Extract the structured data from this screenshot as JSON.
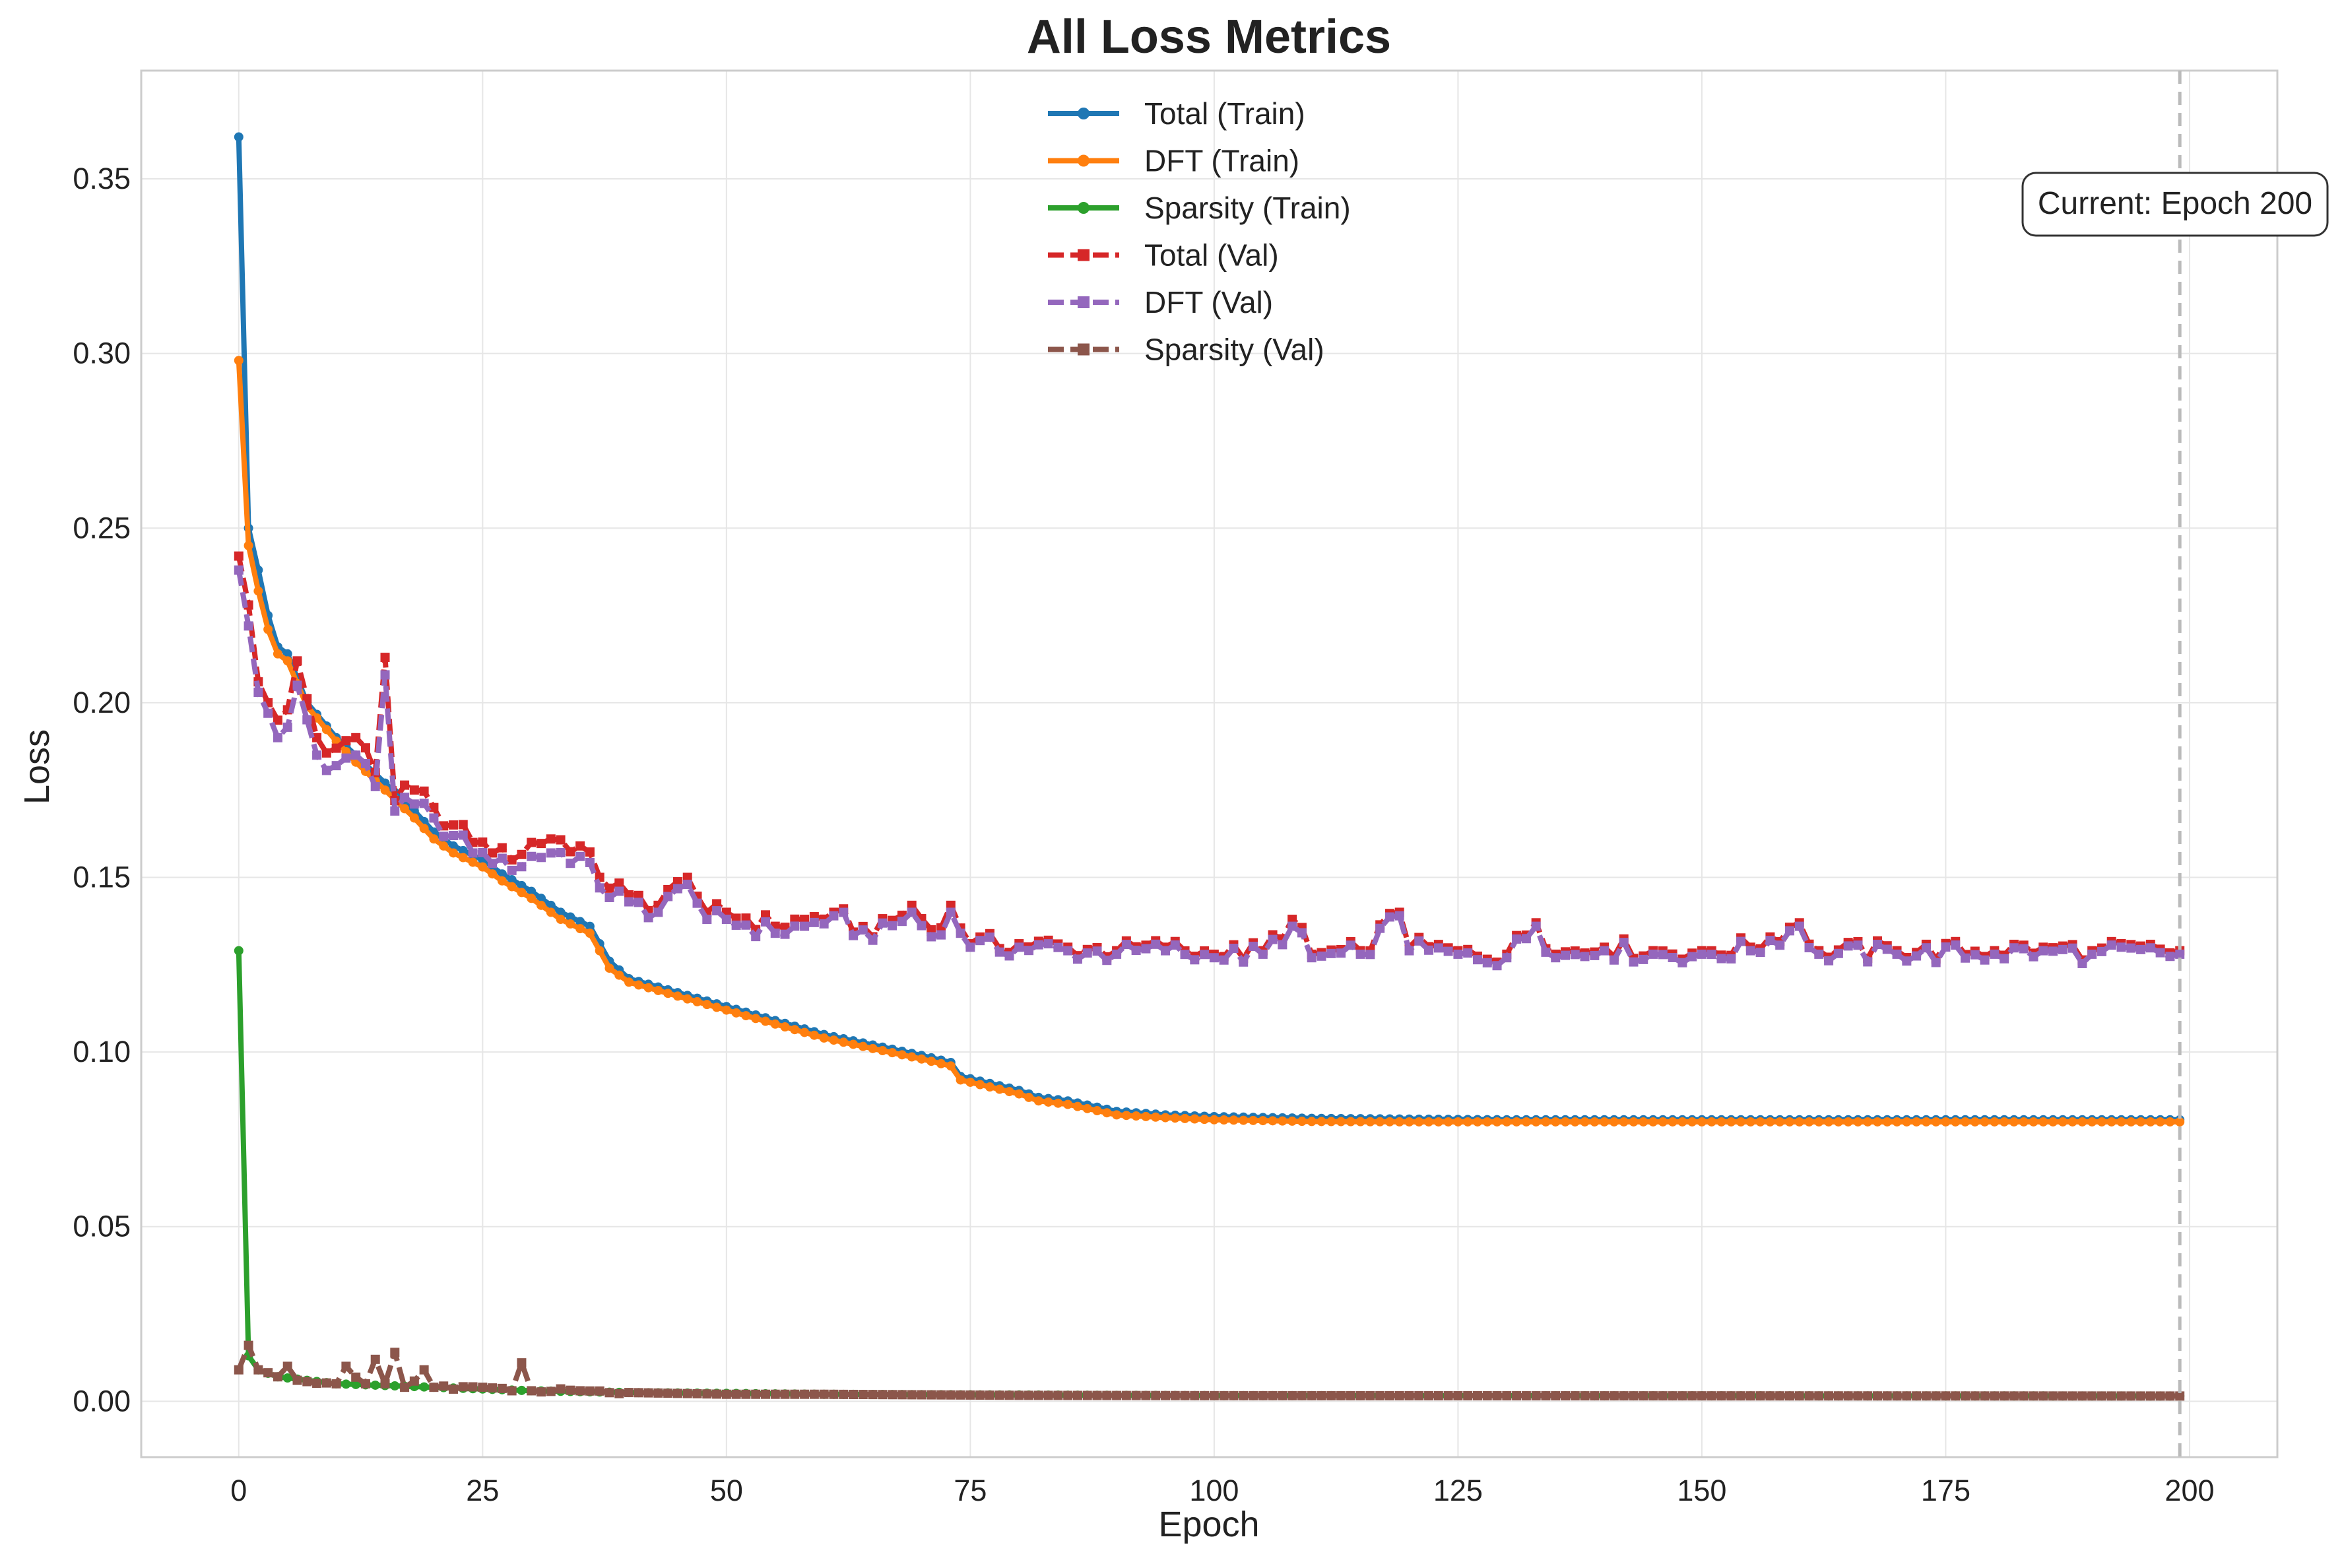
{
  "chart_data": {
    "type": "line",
    "title": "All Loss Metrics",
    "xlabel": "Epoch",
    "ylabel": "Loss",
    "xlim": [
      -10,
      209
    ],
    "ylim": [
      -0.016,
      0.381
    ],
    "xticks": [
      0,
      25,
      50,
      75,
      100,
      125,
      150,
      175,
      200
    ],
    "xtick_labels": [
      "0",
      "25",
      "50",
      "75",
      "100",
      "125",
      "150",
      "175",
      "200"
    ],
    "yticks": [
      0.0,
      0.05,
      0.1,
      0.15,
      0.2,
      0.25,
      0.3,
      0.35
    ],
    "ytick_labels": [
      "0.00",
      "0.05",
      "0.10",
      "0.15",
      "0.20",
      "0.25",
      "0.30",
      "0.35"
    ],
    "grid": true,
    "legend_position": "top-center",
    "x_start": 0,
    "x_end": 199,
    "series": [
      {
        "name": "Total (Train)",
        "color": "#1f77b4",
        "line_style": "solid",
        "marker": "circle",
        "keypoints": [
          [
            0,
            0.362
          ],
          [
            1,
            0.25
          ],
          [
            2,
            0.238
          ],
          [
            3,
            0.225
          ],
          [
            4,
            0.216
          ],
          [
            5,
            0.214
          ],
          [
            7,
            0.2
          ],
          [
            10,
            0.19
          ],
          [
            12,
            0.185
          ],
          [
            15,
            0.177
          ],
          [
            18,
            0.169
          ],
          [
            20,
            0.163
          ],
          [
            22,
            0.159
          ],
          [
            25,
            0.155
          ],
          [
            27,
            0.151
          ],
          [
            30,
            0.146
          ],
          [
            33,
            0.14
          ],
          [
            36,
            0.136
          ],
          [
            38,
            0.126
          ],
          [
            40,
            0.121
          ],
          [
            45,
            0.117
          ],
          [
            50,
            0.113
          ],
          [
            55,
            0.109
          ],
          [
            60,
            0.105
          ],
          [
            65,
            0.102
          ],
          [
            70,
            0.099
          ],
          [
            73,
            0.097
          ],
          [
            74,
            0.093
          ],
          [
            80,
            0.089
          ],
          [
            82,
            0.087
          ],
          [
            85,
            0.086
          ],
          [
            90,
            0.083
          ],
          [
            95,
            0.082
          ],
          [
            100,
            0.0815
          ],
          [
            110,
            0.081
          ],
          [
            120,
            0.0808
          ],
          [
            130,
            0.0806
          ],
          [
            150,
            0.0806
          ],
          [
            170,
            0.0806
          ],
          [
            199,
            0.0806
          ]
        ]
      },
      {
        "name": "DFT (Train)",
        "color": "#ff7f0e",
        "line_style": "solid",
        "marker": "circle",
        "keypoints": [
          [
            0,
            0.298
          ],
          [
            1,
            0.245
          ],
          [
            2,
            0.232
          ],
          [
            3,
            0.221
          ],
          [
            4,
            0.214
          ],
          [
            5,
            0.212
          ],
          [
            7,
            0.199
          ],
          [
            10,
            0.189
          ],
          [
            12,
            0.183
          ],
          [
            15,
            0.175
          ],
          [
            18,
            0.167
          ],
          [
            20,
            0.161
          ],
          [
            22,
            0.157
          ],
          [
            25,
            0.153
          ],
          [
            27,
            0.149
          ],
          [
            30,
            0.144
          ],
          [
            33,
            0.138
          ],
          [
            36,
            0.134
          ],
          [
            38,
            0.124
          ],
          [
            40,
            0.12
          ],
          [
            45,
            0.116
          ],
          [
            50,
            0.112
          ],
          [
            55,
            0.108
          ],
          [
            60,
            0.104
          ],
          [
            65,
            0.101
          ],
          [
            70,
            0.098
          ],
          [
            73,
            0.096
          ],
          [
            74,
            0.092
          ],
          [
            80,
            0.088
          ],
          [
            82,
            0.086
          ],
          [
            85,
            0.085
          ],
          [
            90,
            0.082
          ],
          [
            95,
            0.0812
          ],
          [
            100,
            0.0806
          ],
          [
            110,
            0.0801
          ],
          [
            120,
            0.08
          ],
          [
            130,
            0.08
          ],
          [
            150,
            0.08
          ],
          [
            170,
            0.08
          ],
          [
            199,
            0.08
          ]
        ]
      },
      {
        "name": "Sparsity (Train)",
        "color": "#2ca02c",
        "line_style": "solid",
        "marker": "circle",
        "keypoints": [
          [
            0,
            0.129
          ],
          [
            1,
            0.013
          ],
          [
            2,
            0.009
          ],
          [
            4,
            0.007
          ],
          [
            10,
            0.005
          ],
          [
            20,
            0.004
          ],
          [
            30,
            0.003
          ],
          [
            40,
            0.0025
          ],
          [
            60,
            0.002
          ],
          [
            80,
            0.0018
          ],
          [
            100,
            0.0016
          ],
          [
            199,
            0.0015
          ]
        ]
      },
      {
        "name": "Total (Val)",
        "color": "#d62728",
        "line_style": "dashed",
        "marker": "square",
        "keypoints": [
          [
            0,
            0.242
          ],
          [
            1,
            0.228
          ],
          [
            2,
            0.206
          ],
          [
            3,
            0.2
          ],
          [
            4,
            0.195
          ],
          [
            5,
            0.198
          ],
          [
            6,
            0.212
          ],
          [
            8,
            0.19
          ],
          [
            10,
            0.187
          ],
          [
            12,
            0.19
          ],
          [
            14,
            0.18
          ],
          [
            15,
            0.213
          ],
          [
            16,
            0.172
          ],
          [
            18,
            0.175
          ],
          [
            20,
            0.17
          ],
          [
            22,
            0.165
          ],
          [
            24,
            0.16
          ],
          [
            26,
            0.157
          ],
          [
            28,
            0.155
          ],
          [
            30,
            0.16
          ],
          [
            32,
            0.161
          ],
          [
            35,
            0.159
          ],
          [
            37,
            0.15
          ],
          [
            40,
            0.145
          ],
          [
            43,
            0.142
          ],
          [
            46,
            0.15
          ],
          [
            48,
            0.14
          ],
          [
            50,
            0.14
          ],
          [
            55,
            0.136
          ],
          [
            58,
            0.138
          ],
          [
            61,
            0.14
          ],
          [
            65,
            0.133
          ],
          [
            69,
            0.142
          ],
          [
            71,
            0.135
          ],
          [
            73,
            0.142
          ],
          [
            75,
            0.131
          ],
          [
            80,
            0.131
          ],
          [
            85,
            0.13
          ],
          [
            90,
            0.129
          ],
          [
            95,
            0.13
          ],
          [
            100,
            0.128
          ],
          [
            105,
            0.129
          ],
          [
            108,
            0.138
          ],
          [
            110,
            0.128
          ],
          [
            115,
            0.129
          ],
          [
            119,
            0.14
          ],
          [
            120,
            0.13
          ],
          [
            125,
            0.129
          ],
          [
            130,
            0.128
          ],
          [
            133,
            0.137
          ],
          [
            135,
            0.128
          ],
          [
            140,
            0.13
          ],
          [
            145,
            0.129
          ],
          [
            150,
            0.129
          ],
          [
            155,
            0.13
          ],
          [
            160,
            0.137
          ],
          [
            162,
            0.129
          ],
          [
            170,
            0.129
          ],
          [
            180,
            0.129
          ],
          [
            185,
            0.13
          ],
          [
            190,
            0.129
          ],
          [
            199,
            0.129
          ]
        ]
      },
      {
        "name": "DFT (Val)",
        "color": "#9467bd",
        "line_style": "dashed",
        "marker": "square",
        "keypoints": [
          [
            0,
            0.238
          ],
          [
            1,
            0.222
          ],
          [
            2,
            0.203
          ],
          [
            3,
            0.197
          ],
          [
            4,
            0.19
          ],
          [
            5,
            0.193
          ],
          [
            6,
            0.205
          ],
          [
            8,
            0.185
          ],
          [
            10,
            0.182
          ],
          [
            12,
            0.185
          ],
          [
            14,
            0.176
          ],
          [
            15,
            0.208
          ],
          [
            16,
            0.169
          ],
          [
            18,
            0.171
          ],
          [
            20,
            0.167
          ],
          [
            22,
            0.162
          ],
          [
            24,
            0.157
          ],
          [
            26,
            0.154
          ],
          [
            28,
            0.152
          ],
          [
            30,
            0.156
          ],
          [
            32,
            0.157
          ],
          [
            35,
            0.156
          ],
          [
            37,
            0.147
          ],
          [
            40,
            0.143
          ],
          [
            43,
            0.14
          ],
          [
            46,
            0.148
          ],
          [
            48,
            0.138
          ],
          [
            50,
            0.138
          ],
          [
            55,
            0.134
          ],
          [
            58,
            0.136
          ],
          [
            61,
            0.139
          ],
          [
            65,
            0.132
          ],
          [
            69,
            0.14
          ],
          [
            71,
            0.133
          ],
          [
            73,
            0.14
          ],
          [
            75,
            0.13
          ],
          [
            80,
            0.13
          ],
          [
            85,
            0.129
          ],
          [
            90,
            0.128
          ],
          [
            95,
            0.129
          ],
          [
            100,
            0.127
          ],
          [
            105,
            0.128
          ],
          [
            108,
            0.136
          ],
          [
            110,
            0.127
          ],
          [
            115,
            0.128
          ],
          [
            119,
            0.139
          ],
          [
            120,
            0.129
          ],
          [
            125,
            0.128
          ],
          [
            130,
            0.127
          ],
          [
            133,
            0.136
          ],
          [
            135,
            0.127
          ],
          [
            140,
            0.129
          ],
          [
            145,
            0.128
          ],
          [
            150,
            0.128
          ],
          [
            155,
            0.129
          ],
          [
            160,
            0.136
          ],
          [
            162,
            0.128
          ],
          [
            170,
            0.128
          ],
          [
            180,
            0.128
          ],
          [
            185,
            0.129
          ],
          [
            190,
            0.128
          ],
          [
            199,
            0.128
          ]
        ]
      },
      {
        "name": "Sparsity (Val)",
        "color": "#8c564b",
        "line_style": "dashed",
        "marker": "square",
        "keypoints": [
          [
            0,
            0.009
          ],
          [
            1,
            0.016
          ],
          [
            2,
            0.009
          ],
          [
            4,
            0.007
          ],
          [
            5,
            0.01
          ],
          [
            6,
            0.006
          ],
          [
            10,
            0.005
          ],
          [
            11,
            0.01
          ],
          [
            13,
            0.005
          ],
          [
            14,
            0.012
          ],
          [
            15,
            0.005
          ],
          [
            16,
            0.014
          ],
          [
            17,
            0.004
          ],
          [
            19,
            0.009
          ],
          [
            20,
            0.004
          ],
          [
            25,
            0.004
          ],
          [
            28,
            0.003
          ],
          [
            29,
            0.011
          ],
          [
            30,
            0.003
          ],
          [
            35,
            0.003
          ],
          [
            40,
            0.0025
          ],
          [
            50,
            0.002
          ],
          [
            60,
            0.002
          ],
          [
            80,
            0.0017
          ],
          [
            100,
            0.0016
          ],
          [
            199,
            0.0015
          ]
        ]
      }
    ],
    "annotations": [
      {
        "text": "Current: Epoch 200",
        "vline_x": 199
      }
    ]
  }
}
